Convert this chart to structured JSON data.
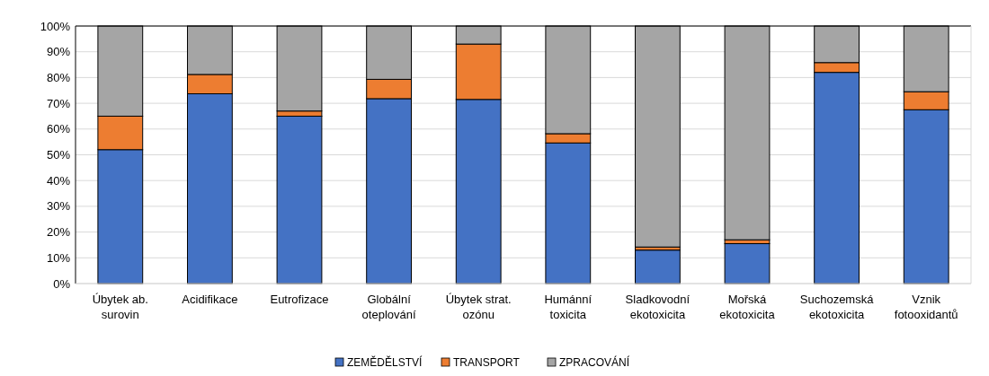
{
  "chart_data": {
    "type": "bar",
    "stacked": true,
    "categories": [
      "Úbytek ab.\nsurovin",
      "Acidifikace",
      "Eutrofizace",
      "Globální\noteplování",
      "Úbytek strat.\nozónu",
      "Humánní\ntoxicita",
      "Sladkovodní\nekotoxicita",
      "Mořská\nekotoxicita",
      "Suchozemská\nekotoxicita",
      "Vznik\nfotooxidantů"
    ],
    "series": [
      {
        "name": "ZEMĚDĚLSTVÍ",
        "color": "#4472c4",
        "values": [
          52,
          73.7,
          65,
          71.8,
          71.5,
          54.6,
          13,
          15.5,
          82,
          67.5
        ]
      },
      {
        "name": "TRANSPORT",
        "color": "#ed7d31",
        "values": [
          13,
          7.5,
          2,
          7.5,
          21.5,
          3.6,
          1.2,
          1.5,
          3.8,
          7
        ]
      },
      {
        "name": "ZPRACOVÁNÍ",
        "color": "#a5a5a5",
        "values": [
          35,
          18.8,
          33,
          20.7,
          7,
          41.8,
          85.8,
          83,
          14.2,
          25.5
        ]
      }
    ],
    "ylim": [
      0,
      100
    ],
    "yticks": [
      {
        "value": 0,
        "label": "0%"
      },
      {
        "value": 10,
        "label": "10%"
      },
      {
        "value": 20,
        "label": "20%"
      },
      {
        "value": 30,
        "label": "30%"
      },
      {
        "value": 40,
        "label": "40%"
      },
      {
        "value": 50,
        "label": "50%"
      },
      {
        "value": 60,
        "label": "60%"
      },
      {
        "value": 70,
        "label": "70%"
      },
      {
        "value": 80,
        "label": "80%"
      },
      {
        "value": 90,
        "label": "90%"
      },
      {
        "value": 100,
        "label": "100%"
      }
    ],
    "grid": "y",
    "legend": "bottom"
  }
}
